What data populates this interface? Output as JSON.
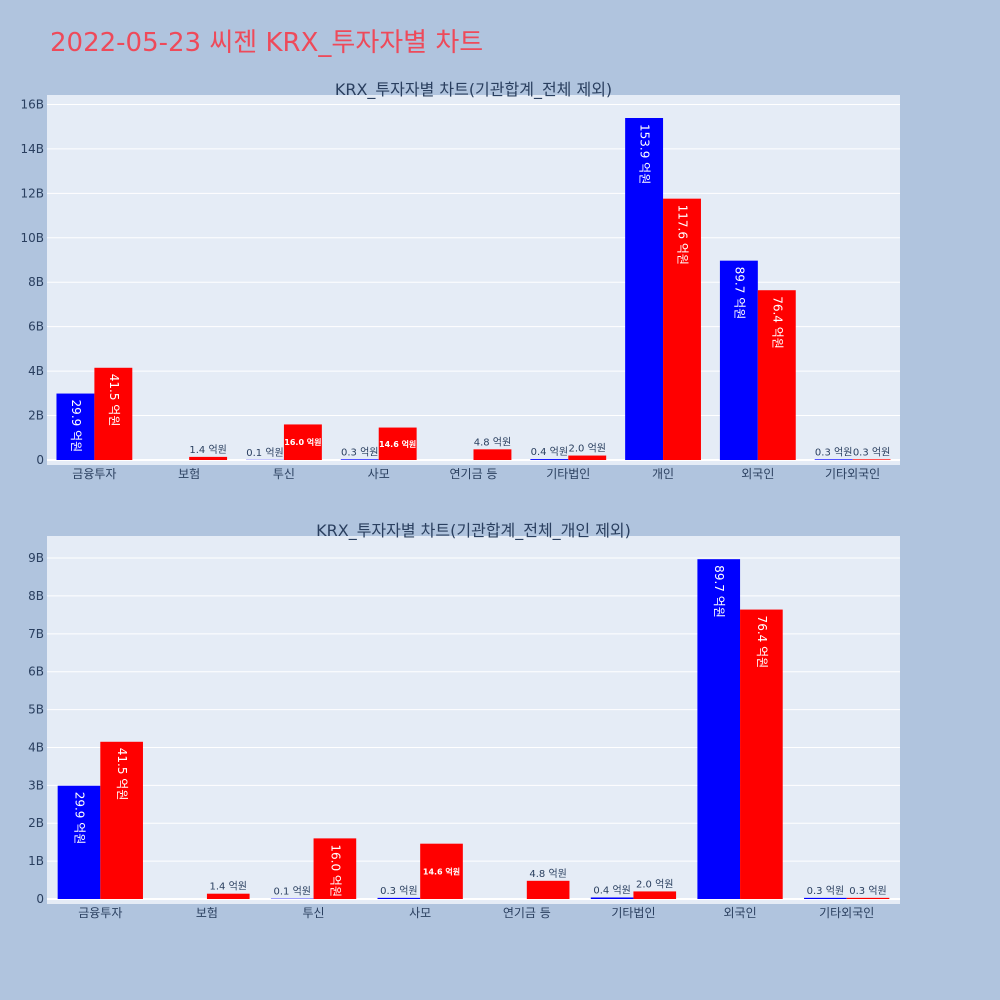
{
  "page": {
    "title": "2022-05-23 씨젠 KRX_투자자별 차트"
  },
  "colors": {
    "buy": "#0000ff",
    "sell": "#ff0000",
    "plot_bg": "#e5ecf6",
    "page_bg": "#b0c4de",
    "title": "#ee4a5a"
  },
  "chart_data": [
    {
      "type": "bar",
      "title": "KRX_투자자별 차트(기관합계_전체 제외)",
      "categories": [
        "금융투자",
        "보험",
        "투신",
        "사모",
        "연기금 등",
        "기타법인",
        "개인",
        "외국인",
        "기타외국인"
      ],
      "series": [
        {
          "values": [
            2.99,
            0,
            0.01,
            0.03,
            0,
            0.04,
            15.39,
            8.97,
            0.03
          ],
          "labels": [
            "29.9 억원",
            "",
            "0.1 억원",
            "0.3 억원",
            "",
            "0.4 억원",
            "153.9 억원",
            "89.7 억원",
            "0.3 억원"
          ]
        },
        {
          "values": [
            4.15,
            0.14,
            1.6,
            1.46,
            0.48,
            0.2,
            11.76,
            7.64,
            0.03
          ],
          "labels": [
            "41.5 억원",
            "1.4 억원",
            "16.0 억원",
            "14.6 억원",
            "4.8 억원",
            "2.0 억원",
            "117.6 억원",
            "76.4 억원",
            "0.3 억원"
          ]
        }
      ],
      "yticks": [
        "0",
        "2B",
        "4B",
        "6B",
        "8B",
        "10B",
        "12B",
        "14B",
        "16B"
      ],
      "ylim": [
        0,
        16.2
      ],
      "grid": true
    },
    {
      "type": "bar",
      "title": "KRX_투자자별 차트(기관합계_전체_개인 제외)",
      "categories": [
        "금융투자",
        "보험",
        "투신",
        "사모",
        "연기금 등",
        "기타법인",
        "외국인",
        "기타외국인"
      ],
      "series": [
        {
          "values": [
            2.99,
            0,
            0.01,
            0.03,
            0,
            0.04,
            8.97,
            0.03
          ],
          "labels": [
            "29.9 억원",
            "",
            "0.1 억원",
            "0.3 억원",
            "",
            "0.4 억원",
            "89.7 억원",
            "0.3 억원"
          ]
        },
        {
          "values": [
            4.15,
            0.14,
            1.6,
            1.46,
            0.48,
            0.2,
            7.64,
            0.03
          ],
          "labels": [
            "41.5 억원",
            "1.4 억원",
            "16.0 억원",
            "14.6 억원",
            "4.8 억원",
            "2.0 억원",
            "76.4 억원",
            "0.3 억원"
          ]
        }
      ],
      "yticks": [
        "0",
        "1B",
        "2B",
        "3B",
        "4B",
        "5B",
        "6B",
        "7B",
        "8B",
        "9B"
      ],
      "ylim": [
        0,
        9.45
      ],
      "grid": true
    }
  ]
}
